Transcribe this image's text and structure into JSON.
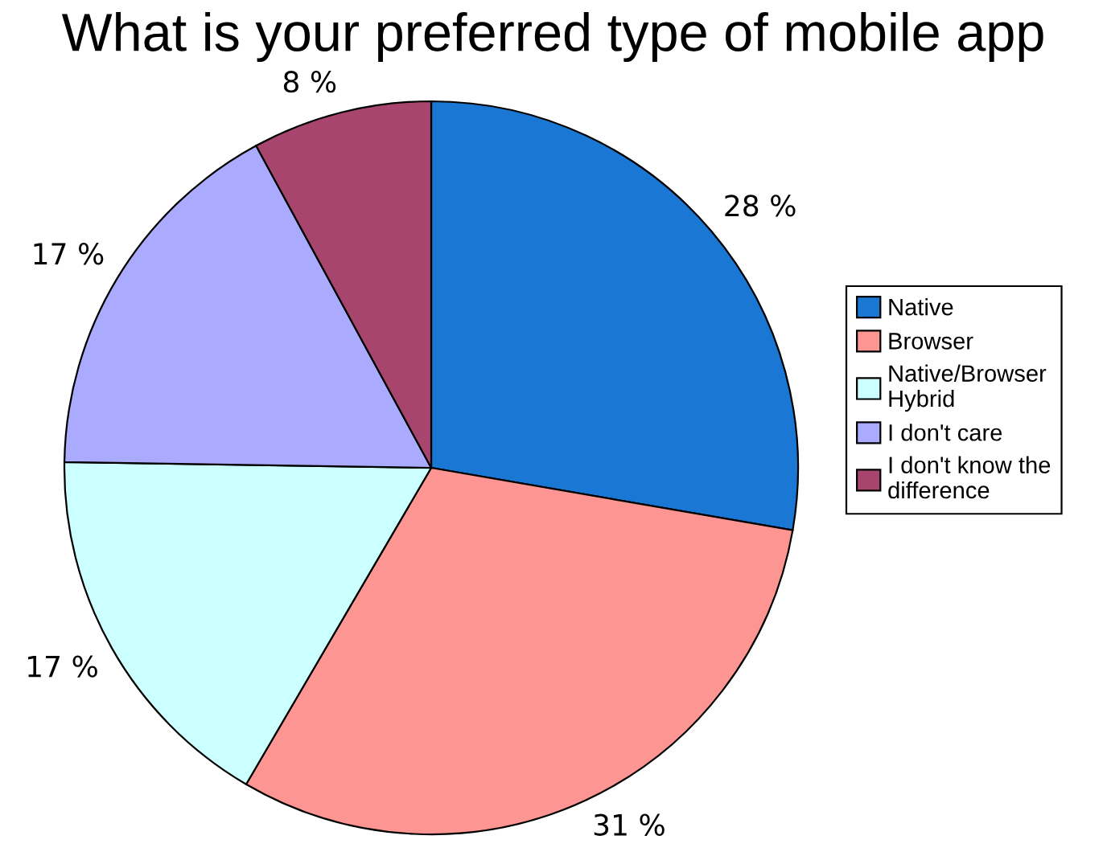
{
  "chart_data": {
    "type": "pie",
    "title": "What is your preferred type of mobile app",
    "categories": [
      "Native",
      "Browser",
      "Native/Browser Hybrid",
      "I don't care",
      "I don't know the difference"
    ],
    "values": [
      28,
      31,
      17,
      17,
      8
    ],
    "value_labels": [
      "28 %",
      "31 %",
      "17 %",
      "17 %",
      "8 %"
    ],
    "colors": [
      "#1a78d4",
      "#fd9593",
      "#ccffff",
      "#aaaaff",
      "#a8456f"
    ],
    "legend": "right"
  }
}
